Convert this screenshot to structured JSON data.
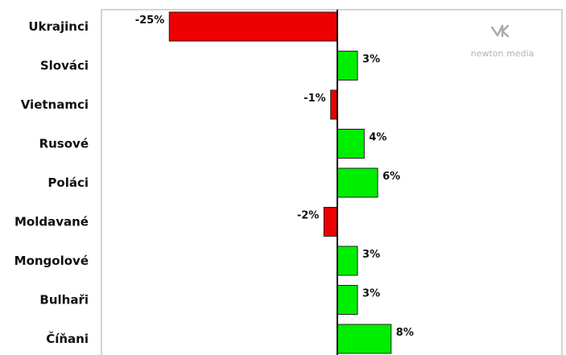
{
  "chart_data": {
    "type": "bar",
    "orientation": "horizontal",
    "categories": [
      "Ukrajinci",
      "Slováci",
      "Vietnamci",
      "Rusové",
      "Poláci",
      "Moldavané",
      "Mongolové",
      "Bulhaři",
      "Číňani"
    ],
    "values": [
      -25,
      3,
      -1,
      4,
      6,
      -2,
      3,
      3,
      8
    ],
    "labels": [
      "-25%",
      "3%",
      "-1%",
      "4%",
      "6%",
      "-2%",
      "3%",
      "3%",
      "8%"
    ],
    "xlim": [
      -35,
      30
    ],
    "colors": {
      "positive": "#00ee00",
      "negative": "#ee0000"
    }
  },
  "logo": {
    "text": "newton media"
  }
}
